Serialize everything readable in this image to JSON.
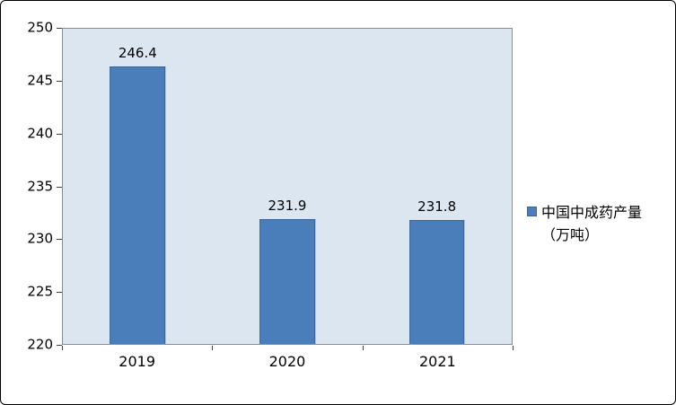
{
  "chart_data": {
    "type": "bar",
    "title": "",
    "categories": [
      "2019",
      "2020",
      "2021"
    ],
    "values": [
      246.4,
      231.9,
      231.8
    ],
    "value_labels": [
      "246.4",
      "231.9",
      "231.8"
    ],
    "legend_label": "中国中成药产量（万吨）",
    "legend_position": "right",
    "xlabel": "",
    "ylabel": "",
    "ylim": [
      220,
      250
    ],
    "yticks": [
      220,
      225,
      230,
      235,
      240,
      245,
      250
    ],
    "grid": false,
    "colors": {
      "bar_fill": "#4a7ebb",
      "bar_border": "#3b6394",
      "plot_background": "#dce6f1",
      "figure_border": "#000000"
    }
  }
}
